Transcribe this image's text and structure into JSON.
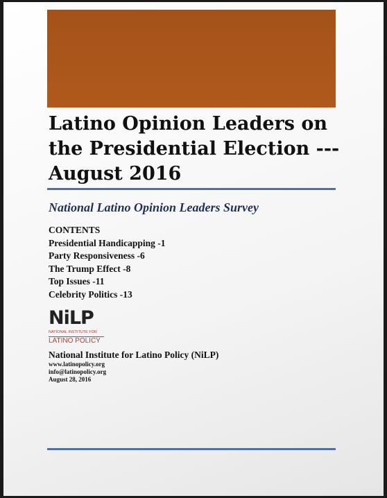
{
  "document": {
    "title_lines": [
      "Latino Opinion Leaders on",
      "the Presidential Election ---",
      "August 2016"
    ],
    "subtitle": "National Latino Opinion Leaders Survey",
    "contents": {
      "heading": "CONTENTS",
      "items": [
        "Presidential Handicapping -1",
        "Party Responsiveness -6",
        "The Trump Effect -8",
        "Top Issues -11",
        "Celebrity Politics -13"
      ]
    },
    "logo": {
      "mark": "NiLP",
      "line1": "NATIONAL INSTITUTE FOR",
      "line2": "LATINO POLICY"
    },
    "publisher": {
      "name": "National Institute for Latino Policy (NiLP)",
      "website": "www.latinopolicy.org",
      "email": "info@latinopolicy.org",
      "date": "August 28, 2016"
    }
  }
}
